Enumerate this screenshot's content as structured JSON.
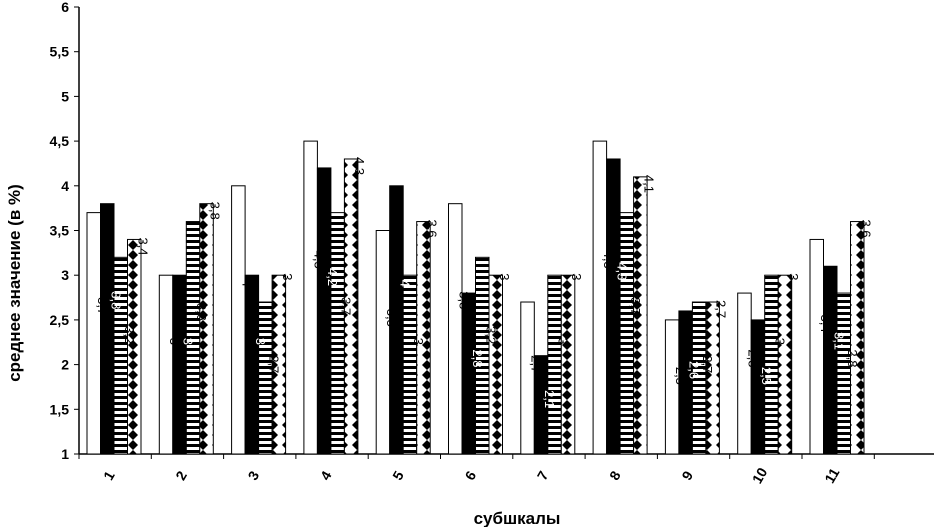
{
  "chart_data": {
    "type": "bar",
    "xlabel": "субшкалы",
    "ylabel": "среднее значение (в %)",
    "ylim": [
      1,
      6
    ],
    "yticks": [
      "1",
      "1,5",
      "2",
      "2,5",
      "3",
      "3,5",
      "4",
      "4,5",
      "5",
      "5,5",
      "6"
    ],
    "categories": [
      "1",
      "2",
      "3",
      "4",
      "5",
      "6",
      "7",
      "8",
      "9",
      "10",
      "11"
    ],
    "grid": false,
    "legend": "none",
    "series": [
      {
        "values": [
          3.7,
          3.0,
          4.0,
          4.5,
          3.5,
          3.8,
          2.7,
          4.5,
          2.5,
          2.8,
          3.4
        ],
        "labels": [
          "3,7",
          "3",
          "4",
          "4,5",
          "3,5",
          "3,8",
          "2,7",
          "4,5",
          "2,5",
          "2,8",
          "3,4"
        ],
        "fill": "white"
      },
      {
        "values": [
          3.8,
          3.0,
          3.0,
          4.2,
          4.0,
          2.8,
          2.1,
          4.3,
          2.6,
          2.5,
          3.1
        ],
        "labels": [
          "3,8",
          "3",
          "3",
          "4,2",
          "4",
          "2,8",
          "2,1",
          "4,3",
          "2,6",
          "2,5",
          "3,1"
        ],
        "fill": "black"
      },
      {
        "values": [
          3.2,
          3.6,
          2.7,
          3.7,
          3.0,
          3.2,
          3.0,
          3.7,
          2.7,
          3.0,
          2.8
        ],
        "labels": [
          "3,2",
          "3,6",
          "2,7",
          "3,7",
          "3",
          "3,2",
          "3",
          "3,7",
          "2,7",
          "3",
          "2,8"
        ],
        "fill": "stripes"
      },
      {
        "values": [
          3.4,
          3.8,
          3.0,
          4.3,
          3.6,
          3.0,
          3.0,
          4.1,
          2.7,
          3.0,
          3.6
        ],
        "labels": [
          "3,4",
          "3,8",
          "3",
          "4,3",
          "3,6",
          "3",
          "3",
          "4,1",
          "2,7",
          "3",
          "3,6"
        ],
        "fill": "diamonds"
      }
    ]
  }
}
